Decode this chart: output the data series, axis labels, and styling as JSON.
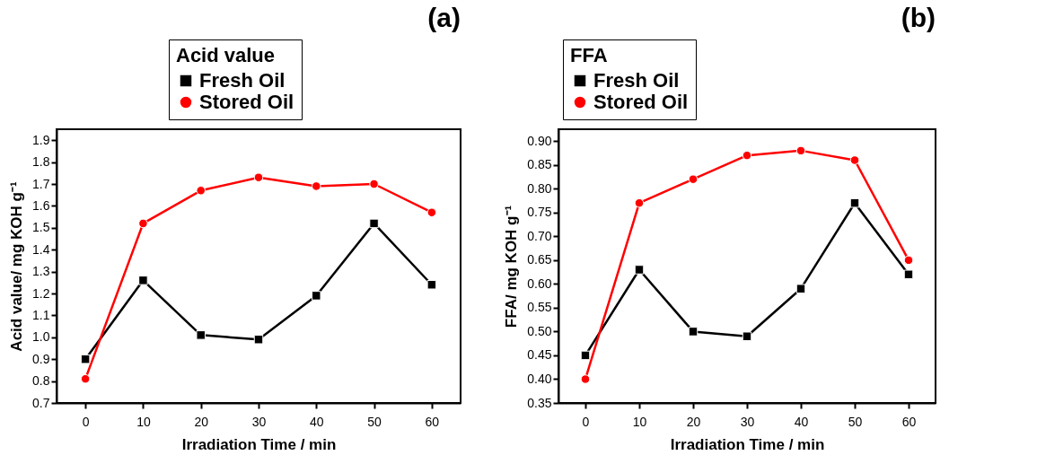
{
  "chart_data": [
    {
      "type": "line",
      "legend_title": "Acid value",
      "xlabel": "Irradiation Time / min",
      "ylabel": "Acid value/ mg KOH g⁻¹",
      "annotations": [
        "(a)"
      ],
      "x": [
        0,
        10,
        20,
        30,
        40,
        50,
        60
      ],
      "series": [
        {
          "name": "Fresh Oil",
          "color": "#000000",
          "marker": "square",
          "values": [
            0.9,
            1.26,
            1.01,
            0.99,
            1.19,
            1.52,
            1.24
          ]
        },
        {
          "name": "Stored Oil",
          "color": "#ff0000",
          "marker": "circle",
          "values": [
            0.81,
            1.52,
            1.67,
            1.73,
            1.69,
            1.7,
            1.57
          ]
        }
      ],
      "xlim": [
        -5,
        65
      ],
      "xticks": [
        0,
        10,
        20,
        30,
        40,
        50,
        60
      ],
      "ylim": [
        0.7,
        1.95
      ],
      "yticks": [
        0.7,
        0.8,
        0.9,
        {
          "value": 1,
          "label": "1.0"
        },
        1.1,
        1.2,
        1.3,
        1.4,
        1.5,
        1.6,
        1.7,
        1.8,
        1.9
      ],
      "grid": false,
      "legend": "top"
    },
    {
      "type": "line",
      "legend_title": "FFA",
      "xlabel": "Irradiation Time / min",
      "ylabel": "FFA/ mg KOH g⁻¹",
      "annotations": [
        "(b)"
      ],
      "x": [
        0,
        10,
        20,
        30,
        40,
        50,
        60
      ],
      "series": [
        {
          "name": "Fresh Oil",
          "color": "#000000",
          "marker": "square",
          "values": [
            0.45,
            0.63,
            0.5,
            0.49,
            0.59,
            0.77,
            0.62
          ]
        },
        {
          "name": "Stored Oil",
          "color": "#ff0000",
          "marker": "circle",
          "values": [
            0.4,
            0.77,
            0.82,
            0.87,
            0.88,
            0.86,
            0.65
          ]
        }
      ],
      "xlim": [
        -5,
        65
      ],
      "xticks": [
        0,
        10,
        20,
        30,
        40,
        50,
        60
      ],
      "ylim": [
        0.35,
        0.925
      ],
      "yticks": [
        0.35,
        {
          "value": 0.4,
          "label": "0.40"
        },
        0.45,
        {
          "value": 0.5,
          "label": "0.50"
        },
        0.55,
        {
          "value": 0.6,
          "label": "0.60"
        },
        0.65,
        {
          "value": 0.7,
          "label": "0.70"
        },
        0.75,
        {
          "value": 0.8,
          "label": "0.80"
        },
        0.85,
        {
          "value": 0.9,
          "label": "0.90"
        }
      ],
      "grid": false,
      "legend": "top left"
    }
  ]
}
